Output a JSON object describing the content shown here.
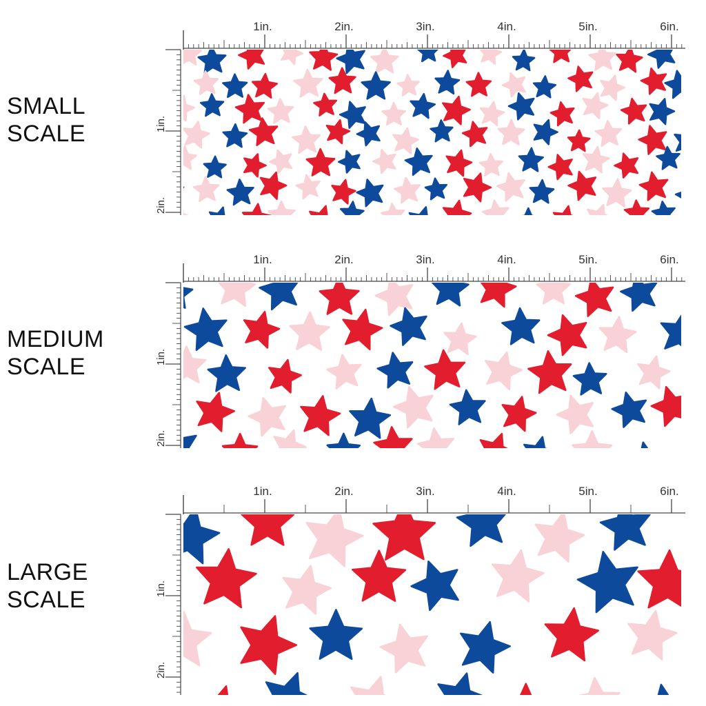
{
  "colors": {
    "red": "#e11d2e",
    "blue": "#0e4a9c",
    "pink": "#f8d2d6",
    "background": "#ffffff",
    "ruler": "#444444"
  },
  "ruler": {
    "horizontal_labels": [
      "1in.",
      "2in.",
      "3in.",
      "4in.",
      "5in.",
      "6in."
    ],
    "vertical_labels": [
      "1in.",
      "2in."
    ]
  },
  "panels": [
    {
      "id": "small",
      "label_line1": "SMALL",
      "label_line2": "SCALE",
      "pattern_scale": 1.0
    },
    {
      "id": "medium",
      "label_line1": "MEDIUM",
      "label_line2": "SCALE",
      "pattern_scale": 1.5
    },
    {
      "id": "large",
      "label_line1": "LARGE",
      "label_line2": "SCALE",
      "pattern_scale": 2.2
    }
  ]
}
